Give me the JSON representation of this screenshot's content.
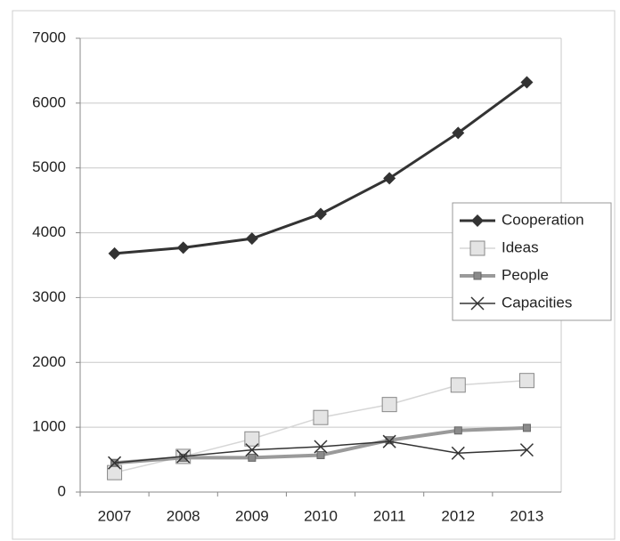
{
  "chart_data": {
    "type": "line",
    "categories": [
      "2007",
      "2008",
      "2009",
      "2010",
      "2011",
      "2012",
      "2013"
    ],
    "series": [
      {
        "name": "Cooperation",
        "color": "#333333",
        "marker": "diamond",
        "values": [
          3680,
          3770,
          3910,
          4290,
          4840,
          5540,
          6320
        ]
      },
      {
        "name": "Ideas",
        "color": "#d6d6d6",
        "marker": "square",
        "values": [
          300,
          550,
          820,
          1150,
          1350,
          1650,
          1720
        ]
      },
      {
        "name": "People",
        "color": "#9a9a9a",
        "marker": "small-square",
        "values": [
          450,
          530,
          530,
          570,
          800,
          950,
          990
        ]
      },
      {
        "name": "Capacities",
        "color": "#333333",
        "marker": "x",
        "values": [
          450,
          550,
          650,
          700,
          780,
          600,
          650
        ]
      }
    ],
    "ylim": [
      0,
      7000
    ],
    "yticks": [
      0,
      1000,
      2000,
      3000,
      4000,
      5000,
      6000,
      7000
    ],
    "grid": true,
    "legend": "right"
  }
}
